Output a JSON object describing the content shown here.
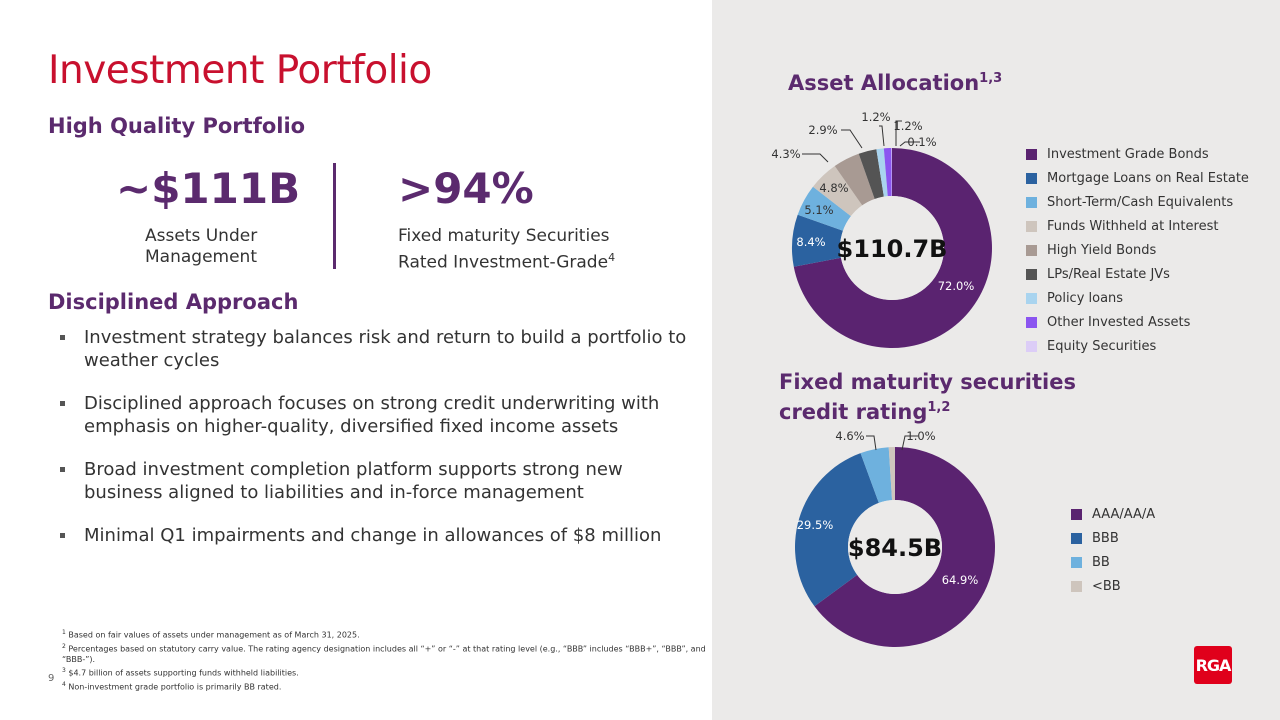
{
  "page": {
    "title": "Investment Portfolio",
    "page_number": "9"
  },
  "left": {
    "section1": "High Quality Portfolio",
    "kpi1": {
      "value": "~$111B",
      "label1": "Assets Under",
      "label2": "Management"
    },
    "kpi2": {
      "value": ">94%",
      "label1": "Fixed maturity Securities",
      "label2": "Rated Investment-Grade",
      "sup": "4"
    },
    "section2": "Disciplined Approach",
    "bullets": [
      "Investment strategy balances risk and return to build a portfolio to weather cycles",
      "Disciplined approach focuses on strong credit underwriting with emphasis on higher-quality, diversified fixed income assets",
      "Broad investment completion platform supports strong new business aligned to liabilities and in-force management",
      "Minimal Q1 impairments and change in allowances of $8 million"
    ],
    "footnotes": [
      {
        "n": "1",
        "text": "Based on fair values of assets under management as of March 31, 2025."
      },
      {
        "n": "2",
        "text": "Percentages based on statutory carry value. The rating agency designation includes all “+” or “-” at that rating level (e.g., “BBB” includes “BBB+”, “BBB”, and “BBB-”)."
      },
      {
        "n": "3",
        "text": "$4.7 billion of assets supporting funds withheld liabilities."
      },
      {
        "n": "4",
        "text": "Non-investment grade portfolio is primarily BB rated."
      }
    ]
  },
  "logo": "RGA",
  "chart_data": [
    {
      "type": "pie",
      "title": "Asset Allocation",
      "title_sup": "1,3",
      "center_label": "$110.7B",
      "legend": "right",
      "categories": [
        "Investment Grade Bonds",
        "Mortgage Loans on Real Estate",
        "Short-Term/Cash Equivalents",
        "Funds Withheld at Interest",
        "High Yield Bonds",
        "LPs/Real Estate JVs",
        "Policy loans",
        "Other Invested Assets",
        "Equity Securities"
      ],
      "values": [
        72.0,
        8.4,
        5.1,
        4.8,
        4.3,
        2.9,
        1.2,
        1.2,
        0.1
      ],
      "labels": [
        "72.0%",
        "8.4%",
        "5.1%",
        "4.8%",
        "4.3%",
        "2.9%",
        "1.2%",
        "1.2%",
        "0.1%"
      ],
      "colors": [
        "#5a2370",
        "#2b62a0",
        "#6eb1de",
        "#cec5bd",
        "#a89a93",
        "#545454",
        "#a9d4ef",
        "#8b55f0",
        "#dccdf7"
      ]
    },
    {
      "type": "pie",
      "title": "Fixed maturity securities credit rating",
      "title_line1": "Fixed maturity securities",
      "title_line2": "credit rating",
      "title_sup": "1,2",
      "center_label": "$84.5B",
      "legend": "right",
      "categories": [
        "AAA/AA/A",
        "BBB",
        "BB",
        "<BB"
      ],
      "values": [
        64.9,
        29.5,
        4.6,
        1.0
      ],
      "labels": [
        "64.9%",
        "29.5%",
        "4.6%",
        "1.0%"
      ],
      "colors": [
        "#5a2370",
        "#2b62a0",
        "#6eb1de",
        "#cec5bd"
      ]
    }
  ]
}
